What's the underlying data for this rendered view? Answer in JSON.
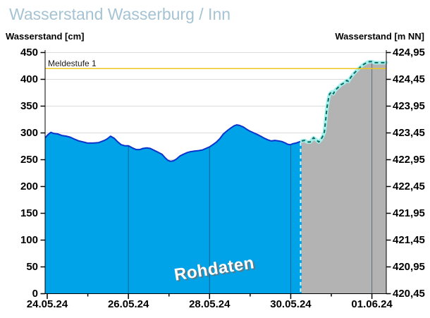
{
  "title": "Wasserstand Wasserburg / Inn",
  "axis_left_label": "Wasserstand [cm]",
  "axis_right_label": "Wasserstand [m NN]",
  "watermark": "Rohdaten",
  "threshold": {
    "label": "Meldestufe 1",
    "value_cm": 420,
    "color": "#EDC71F"
  },
  "colors": {
    "title": "#A6C3D3",
    "observed_fill": "#00A3E8",
    "observed_line": "#0634CC",
    "forecast_fill": "#B3B3B3",
    "forecast_line": "#0C6B60",
    "forecast_halo": "#A4F0EC",
    "boundary_dash": "#E8FFFF",
    "h_grid": "#DBDBDB",
    "v_grid": "rgba(30,45,80,0.55)",
    "axis": "#000000"
  },
  "chart_data": {
    "type": "area",
    "title": "Wasserstand Wasserburg / Inn",
    "ylabel_left": "Wasserstand [cm]",
    "ylabel_right": "Wasserstand [m NN]",
    "ylim_cm": [
      0,
      450
    ],
    "y_ticks_cm": [
      0,
      50,
      100,
      150,
      200,
      250,
      300,
      350,
      400,
      450
    ],
    "y2_tick_labels": [
      "420,45",
      "420,95",
      "421,45",
      "421,95",
      "422,45",
      "422,95",
      "423,45",
      "423,95",
      "424,45",
      "424,95"
    ],
    "x_tick_labels": [
      "24.05.24",
      "26.05.24",
      "28.05.24",
      "30.05.24",
      "01.06.24"
    ],
    "x_tick_days": [
      0,
      2,
      4,
      6,
      8
    ],
    "x_minor_tick_days": [
      1,
      3,
      5,
      7
    ],
    "x_range_days": [
      -0.05,
      8.35
    ],
    "grid": true,
    "threshold_line": {
      "label": "Meldestufe 1",
      "value_cm": 420
    },
    "forecast_boundary_day": 6.27,
    "series": [
      {
        "name": "rohdaten",
        "display": "Rohdaten",
        "style": "solid",
        "points": [
          [
            -0.05,
            291
          ],
          [
            0.02,
            297
          ],
          [
            0.09,
            301
          ],
          [
            0.16,
            299
          ],
          [
            0.26,
            298
          ],
          [
            0.37,
            295
          ],
          [
            0.47,
            294
          ],
          [
            0.57,
            292
          ],
          [
            0.68,
            288
          ],
          [
            0.78,
            285
          ],
          [
            0.89,
            283
          ],
          [
            0.99,
            281
          ],
          [
            1.13,
            281
          ],
          [
            1.27,
            282
          ],
          [
            1.41,
            286
          ],
          [
            1.48,
            289
          ],
          [
            1.56,
            294
          ],
          [
            1.65,
            290
          ],
          [
            1.74,
            283
          ],
          [
            1.82,
            278
          ],
          [
            1.91,
            276
          ],
          [
            2.0,
            276
          ],
          [
            2.1,
            272
          ],
          [
            2.19,
            269
          ],
          [
            2.28,
            269
          ],
          [
            2.36,
            271
          ],
          [
            2.45,
            272
          ],
          [
            2.54,
            271
          ],
          [
            2.62,
            268
          ],
          [
            2.73,
            264
          ],
          [
            2.83,
            260
          ],
          [
            2.9,
            254
          ],
          [
            2.97,
            249
          ],
          [
            3.04,
            247
          ],
          [
            3.11,
            248
          ],
          [
            3.18,
            251
          ],
          [
            3.27,
            257
          ],
          [
            3.35,
            260
          ],
          [
            3.44,
            263
          ],
          [
            3.53,
            265
          ],
          [
            3.63,
            266
          ],
          [
            3.73,
            267
          ],
          [
            3.82,
            268
          ],
          [
            3.91,
            271
          ],
          [
            4.0,
            274
          ],
          [
            4.08,
            278
          ],
          [
            4.17,
            283
          ],
          [
            4.25,
            289
          ],
          [
            4.34,
            298
          ],
          [
            4.43,
            304
          ],
          [
            4.52,
            309
          ],
          [
            4.6,
            313
          ],
          [
            4.67,
            315
          ],
          [
            4.74,
            314
          ],
          [
            4.83,
            311
          ],
          [
            4.91,
            307
          ],
          [
            5.0,
            303
          ],
          [
            5.09,
            300
          ],
          [
            5.18,
            297
          ],
          [
            5.26,
            294
          ],
          [
            5.35,
            290
          ],
          [
            5.44,
            287
          ],
          [
            5.52,
            285
          ],
          [
            5.61,
            286
          ],
          [
            5.7,
            285
          ],
          [
            5.78,
            284
          ],
          [
            5.87,
            281
          ],
          [
            5.92,
            279
          ],
          [
            5.99,
            278
          ],
          [
            6.06,
            280
          ],
          [
            6.13,
            281
          ],
          [
            6.2,
            283
          ],
          [
            6.27,
            285
          ]
        ]
      },
      {
        "name": "forecast-gray",
        "display": "",
        "style": "dashed",
        "points": [
          [
            6.27,
            285
          ],
          [
            6.34,
            286
          ],
          [
            6.41,
            283
          ],
          [
            6.48,
            283
          ],
          [
            6.56,
            291
          ],
          [
            6.63,
            287
          ],
          [
            6.69,
            283
          ],
          [
            6.74,
            287
          ],
          [
            6.79,
            294
          ],
          [
            6.83,
            302
          ],
          [
            6.86,
            324
          ],
          [
            6.89,
            346
          ],
          [
            6.93,
            364
          ],
          [
            6.96,
            373
          ],
          [
            7.02,
            377
          ],
          [
            7.05,
            373
          ],
          [
            7.1,
            380
          ],
          [
            7.17,
            385
          ],
          [
            7.24,
            390
          ],
          [
            7.31,
            393
          ],
          [
            7.38,
            398
          ],
          [
            7.42,
            396
          ],
          [
            7.48,
            404
          ],
          [
            7.57,
            412
          ],
          [
            7.66,
            419
          ],
          [
            7.73,
            424
          ],
          [
            7.8,
            428
          ],
          [
            7.87,
            431
          ],
          [
            7.94,
            433
          ],
          [
            8.01,
            433
          ],
          [
            8.06,
            431
          ],
          [
            8.35,
            431
          ]
        ]
      }
    ]
  }
}
